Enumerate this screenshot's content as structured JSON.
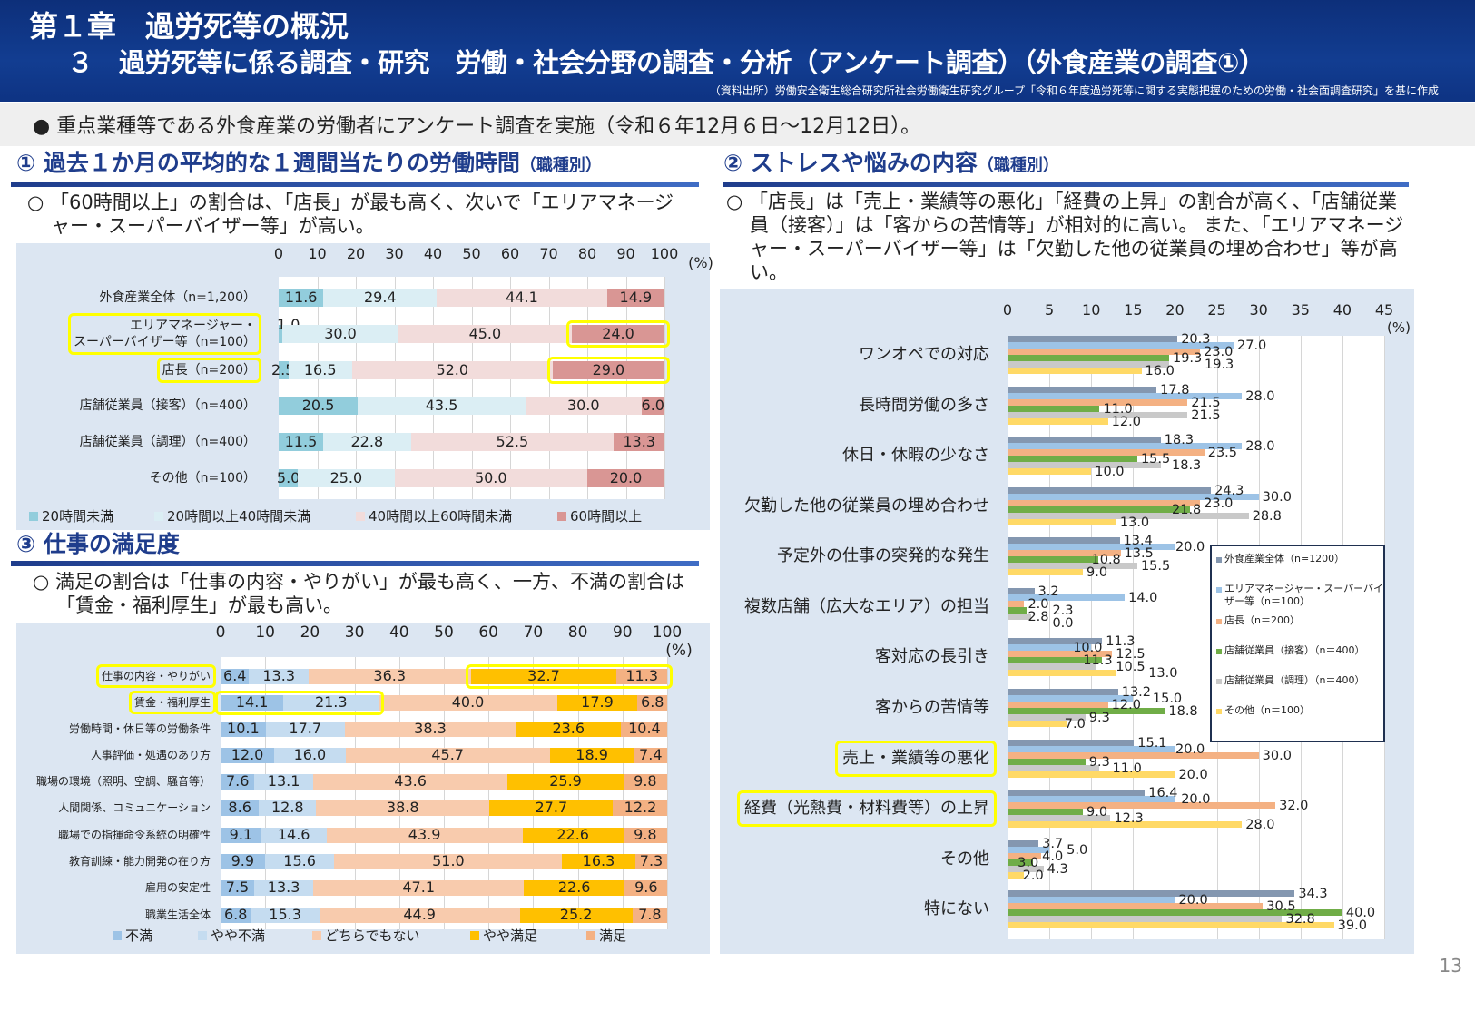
{
  "header": {
    "chapter": "第１章　過労死等の概況",
    "title": "３　過労死等に係る調査・研究　労働・社会分野の調査・分析（アンケート調査）（外食産業の調査①）",
    "source": "（資料出所）労働安全衛生総合研究所社会労働衛生研究グループ「令和６年度過労死等に関する実態把握のための労働・社会面調査研究」を基に作成"
  },
  "bullet": "●  重点業種等である外食産業の労働者にアンケート調査を実施（令和６年12月６日～12月12日）。",
  "sections": [
    {
      "heading": "① 過去１か月の平均的な１週間当たりの労働時間",
      "sub": "（職種別）",
      "desc": "○ 「60時間以上」の割合は、「店長」が最も高く、次いで「エリアマネージャー・スーパーバイザー等」が高い。"
    },
    {
      "heading": "② ストレスや悩みの内容",
      "sub": "（職種別）",
      "desc": "○ 「店長」は「売上・業績等の悪化」「経費の上昇」の割合が高く、「店舗従業員（接客）」は「客からの苦情等」が相対的に高い。 また、「エリアマネージャー・スーパーバイザー等」は「欠勤した他の従業員の埋め合わせ」等が高い。"
    },
    {
      "heading": "③ 仕事の満足度",
      "sub": "",
      "desc": "○ 満足の割合は「仕事の内容・やりがい」が最も高く、一方、不満の割合は「賃金・福利厚生」が最も高い。"
    }
  ],
  "page_number": "13",
  "chart_data": [
    {
      "type": "bar",
      "orientation": "horizontal-stacked",
      "xlim": [
        0,
        100
      ],
      "ticks": [
        "0",
        "10",
        "20",
        "30",
        "40",
        "50",
        "60",
        "70",
        "80",
        "90",
        "100"
      ],
      "unit": "(%)",
      "grid": true,
      "legend_position": "bottom",
      "categories": [
        "外食産業全体（n=1,200）",
        "エリアマネージャー・\nスーパーバイザー等（n=100）",
        "店長（n=200）",
        "店舗従業員（接客）（n=400）",
        "店舗従業員（調理）（n=400）",
        "その他（n=100）"
      ],
      "series": [
        {
          "name": "20時間未満",
          "color": "#92cddc",
          "values": [
            11.6,
            1.0,
            2.5,
            20.5,
            11.5,
            5.0
          ]
        },
        {
          "name": "20時間以上40時間未満",
          "color": "#dbeef4",
          "values": [
            29.4,
            30.0,
            16.5,
            43.5,
            22.8,
            25.0
          ]
        },
        {
          "name": "40時間以上60時間未満",
          "color": "#f2dcdb",
          "values": [
            44.1,
            45.0,
            52.0,
            30.0,
            52.5,
            50.0
          ]
        },
        {
          "name": "60時間以上",
          "color": "#d99694",
          "values": [
            14.9,
            24.0,
            29.0,
            6.0,
            13.3,
            20.0
          ]
        }
      ],
      "highlights": [
        {
          "row": 1,
          "label": true,
          "series": [
            3
          ]
        },
        {
          "row": 2,
          "label": true,
          "series": [
            3
          ]
        }
      ]
    },
    {
      "type": "bar",
      "orientation": "horizontal-grouped",
      "xlim": [
        0,
        45
      ],
      "ticks": [
        "0",
        "5",
        "10",
        "15",
        "20",
        "25",
        "30",
        "35",
        "40",
        "45"
      ],
      "unit": "(%)",
      "grid": true,
      "legend_position": "right",
      "categories": [
        "ワンオペでの対応",
        "長時間労働の多さ",
        "休日・休暇の少なさ",
        "欠勤した他の従業員の埋め合わせ",
        "予定外の仕事の突発的な発生",
        "複数店舗（広大なエリア）の担当",
        "客対応の長引き",
        "客からの苦情等",
        "売上・業績等の悪化",
        "経費（光熱費・材料費等）の上昇",
        "その他",
        "特にない"
      ],
      "series": [
        {
          "name": "外食産業全体（n=1200）",
          "color": "#8497b0",
          "values": [
            20.3,
            17.8,
            18.3,
            24.3,
            13.4,
            3.2,
            11.3,
            13.2,
            15.1,
            16.4,
            3.7,
            34.3
          ]
        },
        {
          "name": "エリアマネージャー・スーパーバイザー等（n＝100）",
          "color": "#9dc3e6",
          "values": [
            27.0,
            28.0,
            28.0,
            30.0,
            20.0,
            14.0,
            10.0,
            15.0,
            20.0,
            20.0,
            5.0,
            20.0
          ]
        },
        {
          "name": "店長（n＝200）",
          "color": "#f4b183",
          "values": [
            23.0,
            21.5,
            23.5,
            23.0,
            13.5,
            2.0,
            12.5,
            12.0,
            30.0,
            32.0,
            4.0,
            30.5
          ]
        },
        {
          "name": "店舗従業員（接客）（n＝400）",
          "color": "#70ad47",
          "values": [
            19.3,
            11.0,
            15.5,
            21.8,
            10.8,
            2.3,
            11.3,
            18.8,
            9.3,
            9.0,
            3.0,
            40.0
          ]
        },
        {
          "name": "店舗従業員（調理）（n＝400）",
          "color": "#c9c9c9",
          "values": [
            19.3,
            21.5,
            18.3,
            28.8,
            15.5,
            2.8,
            10.5,
            9.3,
            11.0,
            12.3,
            4.3,
            32.8
          ]
        },
        {
          "name": "その他（n＝100）",
          "color": "#ffd966",
          "values": [
            16.0,
            12.0,
            10.0,
            13.0,
            9.0,
            0.0,
            13.0,
            7.0,
            20.0,
            28.0,
            2.0,
            39.0
          ]
        }
      ],
      "highlights": [
        {
          "row": 8,
          "label": true
        },
        {
          "row": 9,
          "label": true
        }
      ]
    },
    {
      "type": "bar",
      "orientation": "horizontal-stacked",
      "xlim": [
        0,
        100
      ],
      "ticks": [
        "0",
        "10",
        "20",
        "30",
        "40",
        "50",
        "60",
        "70",
        "80",
        "90",
        "100"
      ],
      "unit": "(%)",
      "grid": true,
      "legend_position": "bottom",
      "categories": [
        "仕事の内容・やりがい",
        "賃金・福利厚生",
        "労働時間・休日等の労働条件",
        "人事評価・処遇のあり方",
        "職場の環境（照明、空調、騒音等）",
        "人間関係、コミュニケーション",
        "職場での指揮命令系統の明確性",
        "教育訓練・能力開発の在り方",
        "雇用の安定性",
        "職業生活全体"
      ],
      "series": [
        {
          "name": "不満",
          "color": "#9dc3e6",
          "values": [
            6.4,
            14.1,
            10.1,
            12.0,
            7.6,
            8.6,
            9.1,
            9.9,
            7.5,
            6.8
          ]
        },
        {
          "name": "やや不満",
          "color": "#c5dcf0",
          "values": [
            13.3,
            21.3,
            17.7,
            16.0,
            13.1,
            12.8,
            14.6,
            15.6,
            13.3,
            15.3
          ]
        },
        {
          "name": "どちらでもない",
          "color": "#f8cbad",
          "values": [
            36.3,
            40.0,
            38.3,
            45.7,
            43.6,
            38.8,
            43.9,
            51.0,
            47.1,
            44.9
          ]
        },
        {
          "name": "やや満足",
          "color": "#ffc000",
          "values": [
            32.7,
            17.9,
            23.6,
            18.9,
            25.9,
            27.7,
            22.6,
            16.3,
            22.6,
            25.2
          ]
        },
        {
          "name": "満足",
          "color": "#f4b183",
          "values": [
            11.3,
            6.8,
            10.4,
            7.4,
            9.8,
            12.2,
            9.8,
            7.3,
            9.6,
            7.8
          ]
        }
      ],
      "highlights": [
        {
          "row": 0,
          "label": true,
          "series": [
            3,
            4
          ]
        },
        {
          "row": 1,
          "label": true,
          "series": [
            0,
            1
          ]
        }
      ]
    }
  ]
}
